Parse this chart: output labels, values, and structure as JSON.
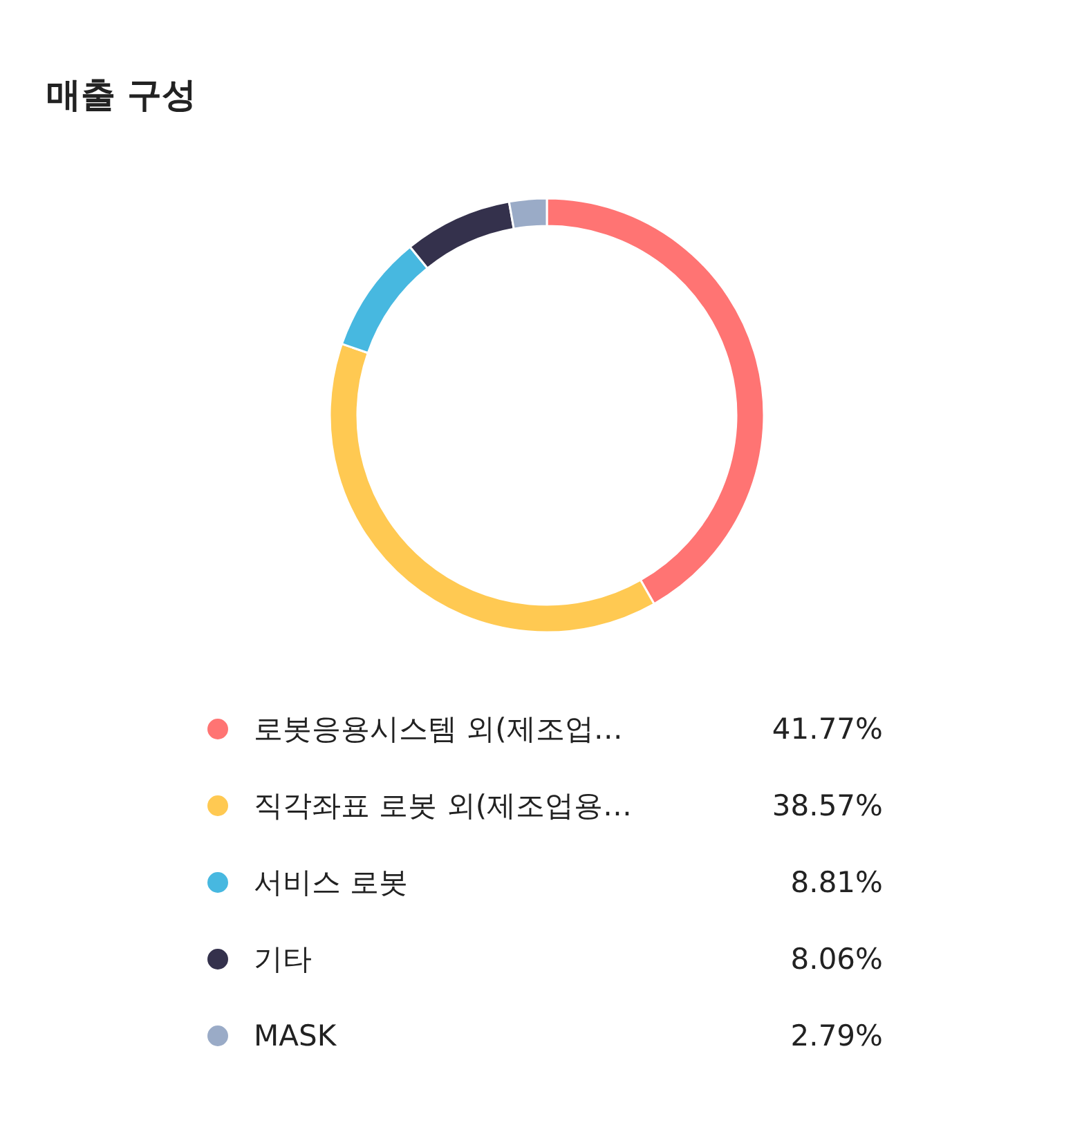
{
  "chart_data": {
    "type": "donut",
    "title": "매출 구성",
    "categories": [
      "로봇응용시스템 외(제조업…",
      "직각좌표 로봇 외(제조업용…",
      "서비스 로봇",
      "기타",
      "MASK"
    ],
    "values": [
      41.77,
      38.57,
      8.81,
      8.06,
      2.79
    ],
    "value_labels": [
      "41.77%",
      "38.57%",
      "8.81%",
      "8.06%",
      "2.79%"
    ],
    "colors": [
      "#ff7473",
      "#ffc952",
      "#47b8e0",
      "#34314c",
      "#9aabc7"
    ],
    "legend": "bottom"
  }
}
